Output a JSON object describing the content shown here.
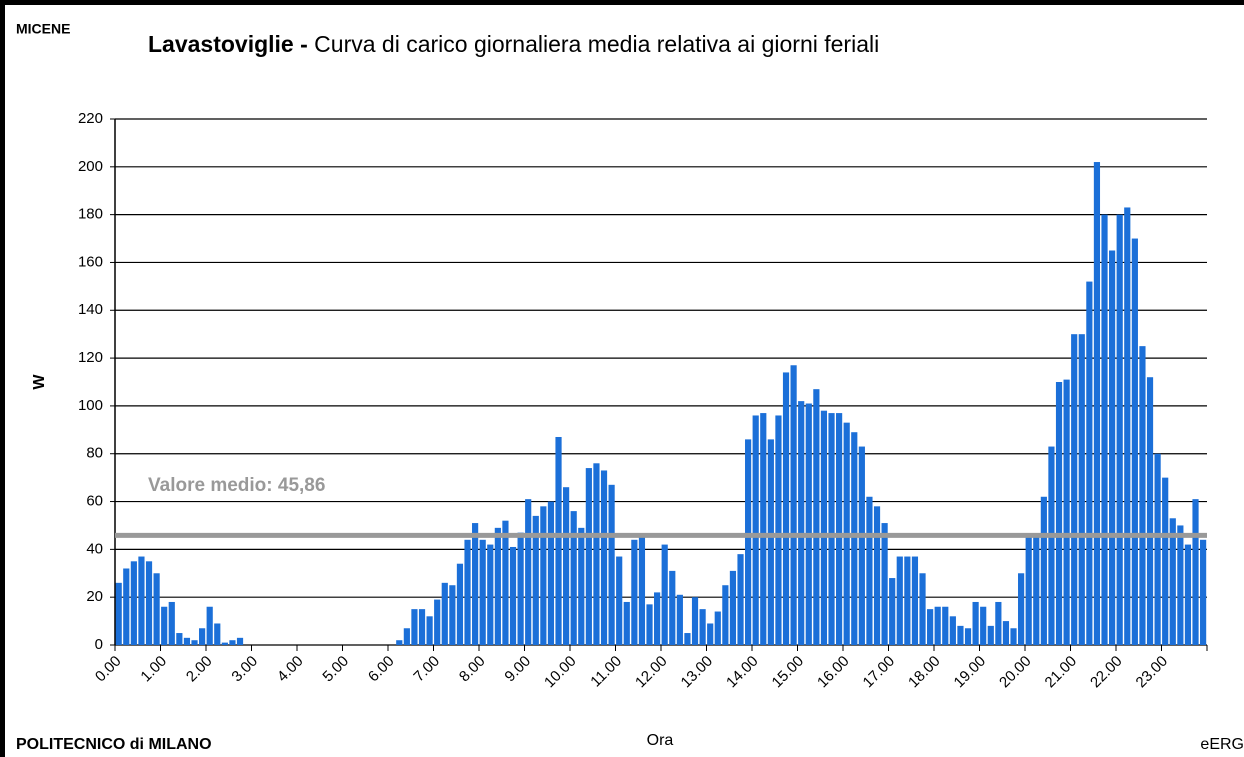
{
  "chart_data": {
    "type": "bar",
    "corner_label": "MICENE",
    "title_prefix": "Lavastoviglie -",
    "title": "Curva di carico giornaliera media relativa ai giorni feriali",
    "ylabel": "W",
    "xlabel": "Ora",
    "footer_left": "POLITECNICO di MILANO",
    "footer_right": "eERG",
    "color": "#1b6fd8",
    "mean": 45.86,
    "mean_label": "Valore medio: 45,86",
    "mean_color": "#999999",
    "ylim": [
      0,
      220
    ],
    "yticks": [
      0,
      20,
      40,
      60,
      80,
      100,
      120,
      140,
      160,
      180,
      200,
      220
    ],
    "grid": true,
    "categories": [
      "0.00",
      null,
      null,
      null,
      null,
      null,
      "1.00",
      null,
      null,
      null,
      null,
      null,
      "2.00",
      null,
      null,
      null,
      null,
      null,
      "3.00",
      null,
      null,
      null,
      null,
      null,
      "4.00",
      null,
      null,
      null,
      null,
      null,
      "5.00",
      null,
      null,
      null,
      null,
      null,
      "6.00",
      null,
      null,
      null,
      null,
      null,
      "7.00",
      null,
      null,
      null,
      null,
      null,
      "8.00",
      null,
      null,
      null,
      null,
      null,
      "9.00",
      null,
      null,
      null,
      null,
      null,
      "10.00",
      null,
      null,
      null,
      null,
      null,
      "11.00",
      null,
      null,
      null,
      null,
      null,
      "12.00",
      null,
      null,
      null,
      null,
      null,
      "13.00",
      null,
      null,
      null,
      null,
      null,
      "14.00",
      null,
      null,
      null,
      null,
      null,
      "15.00",
      null,
      null,
      null,
      null,
      null,
      "16.00",
      null,
      null,
      null,
      null,
      null,
      "17.00",
      null,
      null,
      null,
      null,
      null,
      "18.00",
      null,
      null,
      null,
      null,
      null,
      "19.00",
      null,
      null,
      null,
      null,
      null,
      "20.00",
      null,
      null,
      null,
      null,
      null,
      "21.00",
      null,
      null,
      null,
      null,
      null,
      "22.00",
      null,
      null,
      null,
      null,
      null,
      "23.00",
      null,
      null,
      null,
      null,
      null
    ],
    "values": [
      26,
      32,
      35,
      37,
      35,
      30,
      16,
      18,
      5,
      3,
      2,
      7,
      16,
      9,
      1,
      2,
      3,
      0,
      0,
      0,
      0,
      0,
      0,
      0,
      0,
      0,
      0,
      0,
      0,
      0,
      0,
      0,
      0,
      0,
      0,
      0,
      0,
      2,
      7,
      15,
      15,
      12,
      19,
      26,
      25,
      34,
      44,
      51,
      44,
      42,
      49,
      52,
      41,
      47,
      61,
      54,
      58,
      60,
      87,
      66,
      56,
      49,
      74,
      76,
      73,
      67,
      37,
      18,
      44,
      45,
      17,
      22,
      42,
      31,
      21,
      5,
      20,
      15,
      9,
      14,
      25,
      31,
      38,
      86,
      96,
      97,
      86,
      96,
      114,
      117,
      102,
      101,
      107,
      98,
      97,
      97,
      93,
      89,
      83,
      62,
      58,
      51,
      28,
      37,
      37,
      37,
      30,
      15,
      16,
      16,
      12,
      8,
      7,
      18,
      16,
      8,
      18,
      10,
      7,
      30,
      46,
      46,
      62,
      83,
      110,
      111,
      130,
      130,
      152,
      202,
      180,
      165,
      180,
      183,
      170,
      125,
      112,
      80,
      70,
      53,
      50,
      42,
      61,
      44
    ]
  }
}
